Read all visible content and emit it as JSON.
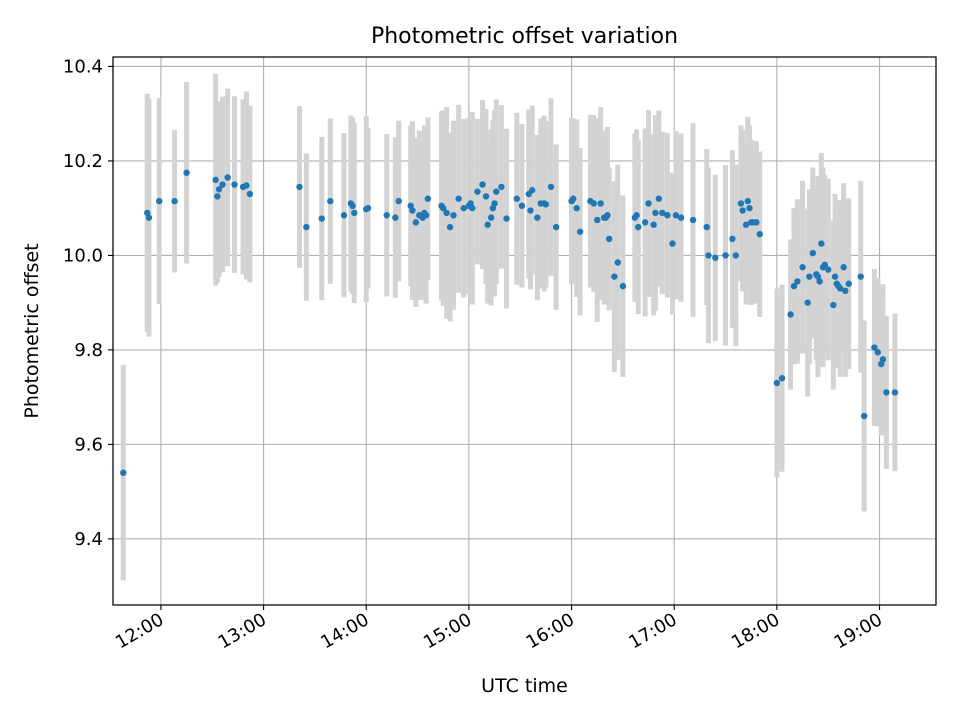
{
  "chart_data": {
    "type": "scatter",
    "title": "Photometric offset variation",
    "xlabel": "UTC time",
    "ylabel": "Photometric offset",
    "xlim": [
      "11:32",
      "19:33"
    ],
    "ylim": [
      9.26,
      10.42
    ],
    "grid": true,
    "x_ticks": [
      "12:00",
      "13:00",
      "14:00",
      "15:00",
      "16:00",
      "17:00",
      "18:00",
      "19:00"
    ],
    "y_ticks": [
      "9.4",
      "9.6",
      "9.8",
      "10.0",
      "10.2",
      "10.4"
    ],
    "y_tick_values": [
      9.4,
      9.6,
      9.8,
      10.0,
      10.2,
      10.4
    ],
    "colors": {
      "points": "#1f77b4",
      "errorbars": "#d3d3d3",
      "grid": "#b0b0b0"
    },
    "series": [
      {
        "x": [
          "11:38",
          "11:52",
          "11:53",
          "11:59",
          "12:08",
          "12:15",
          "12:32",
          "12:33",
          "12:34",
          "12:36",
          "12:39",
          "12:43",
          "12:48",
          "12:50",
          "12:52",
          "13:21",
          "13:25",
          "13:34",
          "13:39",
          "13:47",
          "13:51",
          "13:52",
          "13:53",
          "14:00",
          "14:01",
          "14:12",
          "14:17",
          "14:19",
          "14:26",
          "14:27",
          "14:29",
          "14:31",
          "14:33",
          "14:34",
          "14:35",
          "14:36",
          "14:44",
          "14:45",
          "14:47",
          "14:49",
          "14:51",
          "14:54",
          "14:57",
          "15:00",
          "15:01",
          "15:02",
          "15:05",
          "15:08",
          "15:10",
          "15:11",
          "15:13",
          "15:14",
          "15:15",
          "15:16",
          "15:19",
          "15:22",
          "15:28",
          "15:31",
          "15:35",
          "15:36",
          "15:37",
          "15:40",
          "15:42",
          "15:44",
          "15:45",
          "15:48",
          "15:51",
          "16:00",
          "16:01",
          "16:03",
          "16:05",
          "16:11",
          "16:13",
          "16:15",
          "16:17",
          "16:19",
          "16:20",
          "16:21",
          "16:22",
          "16:25",
          "16:27",
          "16:30",
          "16:37",
          "16:38",
          "16:39",
          "16:43",
          "16:45",
          "16:48",
          "16:49",
          "16:51",
          "16:53",
          "16:56",
          "16:59",
          "17:01",
          "17:04",
          "17:11",
          "17:19",
          "17:20",
          "17:24",
          "17:30",
          "17:34",
          "17:36",
          "17:39",
          "17:40",
          "17:42",
          "17:43",
          "17:44",
          "17:45",
          "17:46",
          "17:48",
          "17:50",
          "18:00",
          "18:03",
          "18:08",
          "18:10",
          "18:12",
          "18:15",
          "18:18",
          "18:19",
          "18:21",
          "18:23",
          "18:24",
          "18:25",
          "18:26",
          "18:27",
          "18:28",
          "18:30",
          "18:33",
          "18:34",
          "18:35",
          "18:36",
          "18:37",
          "18:39",
          "18:40",
          "18:42",
          "18:49",
          "18:51",
          "18:57",
          "18:59",
          "19:01",
          "19:02",
          "19:04",
          "19:09"
        ],
        "y": [
          9.54,
          10.09,
          10.08,
          10.115,
          10.115,
          10.175,
          10.16,
          10.125,
          10.14,
          10.15,
          10.165,
          10.15,
          10.145,
          10.148,
          10.13,
          10.145,
          10.06,
          10.078,
          10.115,
          10.085,
          10.11,
          10.105,
          10.09,
          10.098,
          10.1,
          10.085,
          10.08,
          10.115,
          10.105,
          10.095,
          10.07,
          10.085,
          10.08,
          10.09,
          10.085,
          10.12,
          10.105,
          10.1,
          10.09,
          10.06,
          10.085,
          10.12,
          10.1,
          10.105,
          10.11,
          10.1,
          10.135,
          10.15,
          10.125,
          10.065,
          10.08,
          10.1,
          10.11,
          10.135,
          10.145,
          10.078,
          10.12,
          10.105,
          10.13,
          10.095,
          10.138,
          10.08,
          10.11,
          10.11,
          10.108,
          10.145,
          10.06,
          10.115,
          10.12,
          10.1,
          10.05,
          10.115,
          10.11,
          10.075,
          10.11,
          10.08,
          10.08,
          10.085,
          10.035,
          9.955,
          9.985,
          9.935,
          10.08,
          10.085,
          10.06,
          10.07,
          10.11,
          10.065,
          10.09,
          10.12,
          10.09,
          10.085,
          10.025,
          10.085,
          10.08,
          10.075,
          10.06,
          10.0,
          9.995,
          10.0,
          10.035,
          10.0,
          10.11,
          10.095,
          10.065,
          10.115,
          10.1,
          10.07,
          10.07,
          10.07,
          10.045,
          9.73,
          9.74,
          9.875,
          9.935,
          9.945,
          9.975,
          9.9,
          9.955,
          10.005,
          9.96,
          9.955,
          9.945,
          10.025,
          9.975,
          9.98,
          9.97,
          9.895,
          9.955,
          9.94,
          9.935,
          9.93,
          9.975,
          9.925,
          9.94,
          9.955,
          9.66,
          9.805,
          9.795,
          9.77,
          9.78,
          9.71,
          9.71
        ],
        "yerr": [
          0.228,
          0.252,
          0.252,
          0.218,
          0.151,
          0.192,
          0.224,
          0.183,
          0.186,
          0.186,
          0.188,
          0.187,
          0.185,
          0.199,
          0.187,
          0.171,
          0.156,
          0.173,
          0.175,
          0.174,
          0.186,
          0.187,
          0.191,
          0.197,
          0.17,
          0.172,
          0.17,
          0.17,
          0.17,
          0.189,
          0.179,
          0.179,
          0.162,
          0.185,
          0.187,
          0.172,
          0.2,
          0.207,
          0.224,
          0.2,
          0.2,
          0.199,
          0.189,
          0.187,
          0.181,
          0.204,
          0.154,
          0.179,
          0.185,
          0.167,
          0.186,
          0.186,
          0.197,
          0.195,
          0.173,
          0.19,
          0.182,
          0.173,
          0.179,
          0.167,
          0.179,
          0.175,
          0.18,
          0.186,
          0.176,
          0.188,
          0.175,
          0.176,
          0.17,
          0.188,
          0.177,
          0.183,
          0.187,
          0.216,
          0.204,
          0.184,
          0.174,
          0.187,
          0.151,
          0.202,
          0.207,
          0.192,
          0.178,
          0.182,
          0.184,
          0.199,
          0.198,
          0.192,
          0.207,
          0.187,
          0.172,
          0.174,
          0.15,
          0.178,
          0.178,
          0.205,
          0.165,
          0.186,
          0.176,
          0.191,
          0.188,
          0.192,
          0.165,
          0.171,
          0.169,
          0.178,
          0.175,
          0.175,
          0.172,
          0.172,
          0.175,
          0.2,
          0.198,
          0.159,
          0.165,
          0.174,
          0.183,
          0.199,
          0.185,
          0.181,
          0.182,
          0.213,
          0.174,
          0.192,
          0.211,
          0.19,
          0.192,
          0.179,
          0.175,
          0.175,
          0.174,
          0.187,
          0.178,
          0.182,
          0.181,
          0.203,
          0.202,
          0.166,
          0.157,
          0.151,
          0.159,
          0.162,
          0.167
        ]
      }
    ]
  }
}
